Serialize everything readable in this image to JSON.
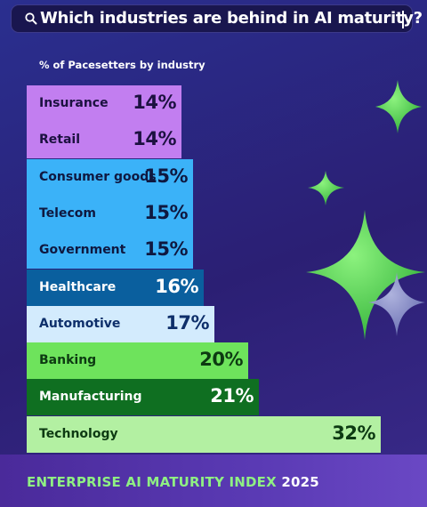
{
  "search": {
    "query": "Which industries are behind in AI maturity?",
    "icon": "search-icon"
  },
  "chart_data": {
    "type": "bar",
    "orientation": "horizontal",
    "title": "Which industries are behind in AI maturity?",
    "subtitle": "% of Pacesetters by industry",
    "categories": [
      "Insurance",
      "Retail",
      "Consumer goods",
      "Telecom",
      "Government",
      "Healthcare",
      "Automotive",
      "Banking",
      "Manufacturing",
      "Technology"
    ],
    "values": [
      14,
      14,
      15,
      15,
      15,
      16,
      17,
      20,
      21,
      32
    ],
    "value_labels": [
      "14%",
      "14%",
      "15%",
      "15%",
      "15%",
      "16%",
      "17%",
      "20%",
      "21%",
      "32%"
    ],
    "unit": "%",
    "grid": false,
    "colors": [
      "#c27ef0",
      "#c27ef0",
      "#3bb2f8",
      "#3bb2f8",
      "#3bb2f8",
      "#0a5f9e",
      "#d3ebfd",
      "#6ee35c",
      "#0f6f21",
      "#b3f0a2"
    ],
    "label_colors": [
      "#1c1140",
      "#1c1140",
      "#0f1840",
      "#0f1840",
      "#0f1840",
      "#ffffff",
      "#0e2f6a",
      "#0d3a12",
      "#ffffff",
      "#0d3a12"
    ]
  },
  "footer": {
    "brand": "ENTERPRISE AI MATURITY INDEX",
    "year": "2025"
  },
  "decor": {
    "sparkle_color": "#5ad64c",
    "sparkle_small_color": "#9aa3d8"
  }
}
